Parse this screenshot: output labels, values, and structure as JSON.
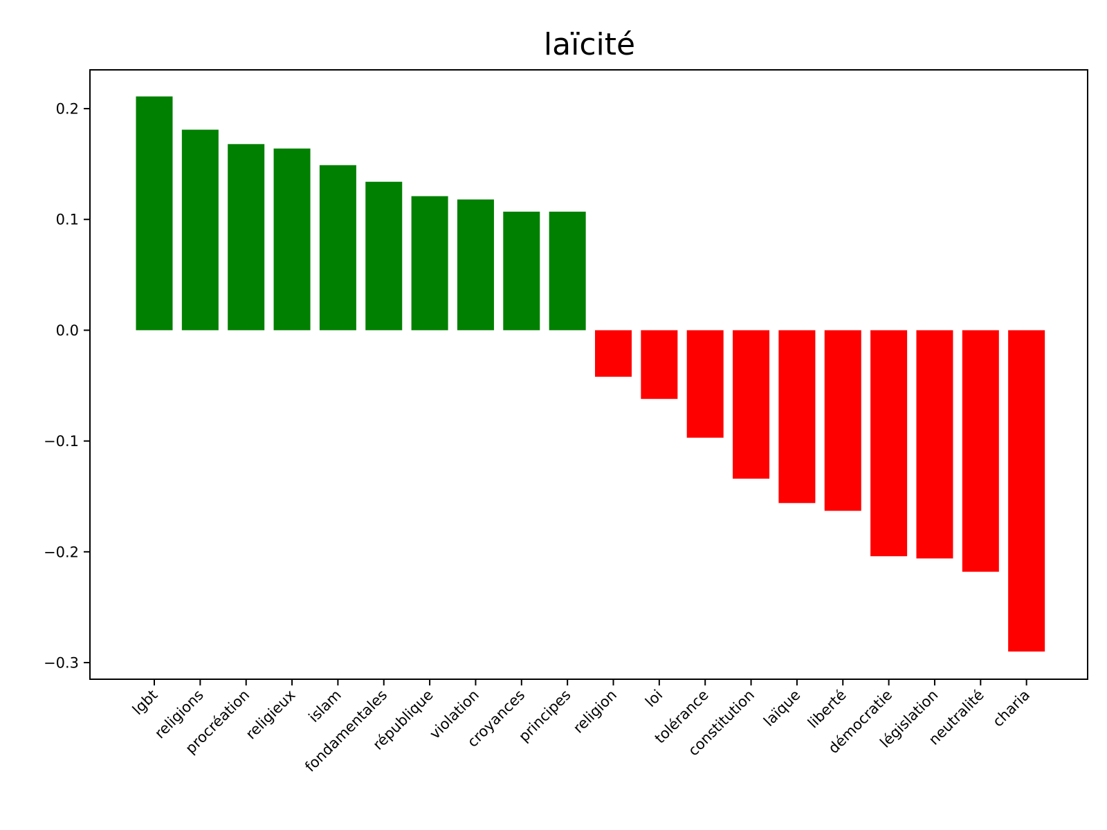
{
  "chart_data": {
    "type": "bar",
    "title": "laïcité",
    "xlabel": "",
    "ylabel": "",
    "ylim": [
      -0.315,
      0.235
    ],
    "yticks": [
      -0.3,
      -0.2,
      -0.1,
      0.0,
      0.1,
      0.2
    ],
    "ytick_labels": [
      "−0.3",
      "−0.2",
      "−0.1",
      "0.0",
      "0.1",
      "0.2"
    ],
    "categories": [
      "lgbt",
      "religions",
      "procréation",
      "religieux",
      "islam",
      "fondamentales",
      "république",
      "violation",
      "croyances",
      "principes",
      "religion",
      "loi",
      "tolérance",
      "constitution",
      "laïque",
      "liberté",
      "démocratie",
      "législation",
      "neutralité",
      "charia"
    ],
    "values": [
      0.211,
      0.181,
      0.168,
      0.164,
      0.149,
      0.134,
      0.121,
      0.118,
      0.107,
      0.107,
      -0.042,
      -0.062,
      -0.097,
      -0.134,
      -0.156,
      -0.163,
      -0.204,
      -0.206,
      -0.218,
      -0.29
    ],
    "colors": {
      "positive": "#008000",
      "negative": "#ff0000"
    },
    "grid": false,
    "legend": "none"
  }
}
